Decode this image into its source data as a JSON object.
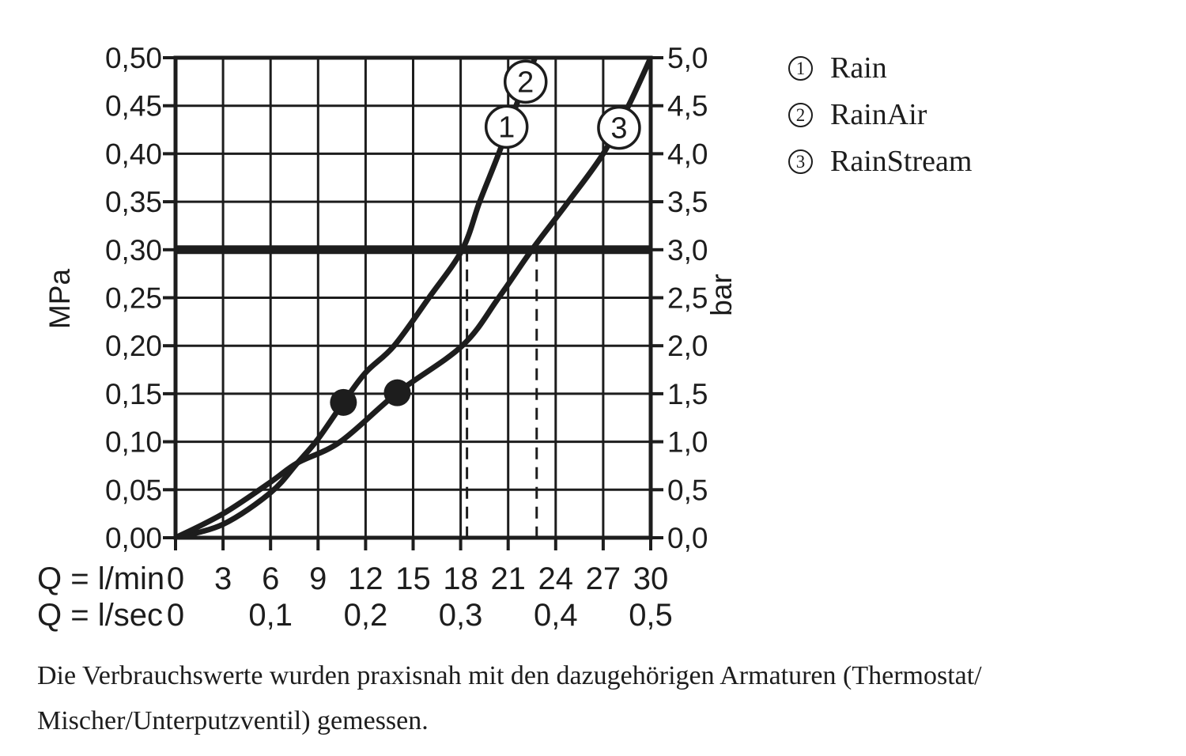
{
  "chart_data": {
    "type": "line",
    "title": "",
    "x_axis": {
      "range_lmin": [
        0,
        30
      ],
      "grid_step_lmin": 3,
      "row_lmin": {
        "label": "Q = l/min",
        "ticks": [
          {
            "q": 0,
            "t": "0"
          },
          {
            "q": 3,
            "t": "3"
          },
          {
            "q": 6,
            "t": "6"
          },
          {
            "q": 9,
            "t": "9"
          },
          {
            "q": 12,
            "t": "12"
          },
          {
            "q": 15,
            "t": "15"
          },
          {
            "q": 18,
            "t": "18"
          },
          {
            "q": 21,
            "t": "21"
          },
          {
            "q": 24,
            "t": "24"
          },
          {
            "q": 27,
            "t": "27"
          },
          {
            "q": 30,
            "t": "30"
          }
        ]
      },
      "row_lsec": {
        "label": "Q = l/sec",
        "ticks": [
          {
            "q": 0,
            "t": "0"
          },
          {
            "q": 6,
            "t": "0,1"
          },
          {
            "q": 12,
            "t": "0,2"
          },
          {
            "q": 18,
            "t": "0,3"
          },
          {
            "q": 24,
            "t": "0,4"
          },
          {
            "q": 30,
            "t": "0,5"
          }
        ]
      }
    },
    "y_axis_left": {
      "unit": "MPa",
      "range": [
        0,
        0.5
      ],
      "grid_step": 0.05,
      "ticks": [
        "0,50",
        "0,45",
        "0,40",
        "0,35",
        "0,30",
        "0,25",
        "0,20",
        "0,15",
        "0,10",
        "0,05",
        "0,00"
      ]
    },
    "y_axis_right": {
      "unit": "bar",
      "range": [
        0,
        5
      ],
      "ticks": [
        "5,0",
        "4,5",
        "4,0",
        "3,5",
        "3,0",
        "2,5",
        "2,0",
        "1,5",
        "1,0",
        "0,5",
        "0,0"
      ]
    },
    "reference_line": {
      "mpa": 0.3,
      "bar": 3.0
    },
    "dashed_guides_lmin": [
      18.4,
      22.8
    ],
    "series": [
      {
        "id": "rain-rainair",
        "name": "Rain / RainAir",
        "legend_refs": [
          "1",
          "2"
        ],
        "points_lmin_mpa": [
          [
            0,
            0
          ],
          [
            3,
            0.014
          ],
          [
            6,
            0.047
          ],
          [
            7.7,
            0.078
          ],
          [
            9,
            0.103
          ],
          [
            10.6,
            0.141
          ],
          [
            12,
            0.172
          ],
          [
            13.8,
            0.2
          ],
          [
            16,
            0.25
          ],
          [
            18.1,
            0.3
          ],
          [
            19.2,
            0.35
          ],
          [
            20.4,
            0.4
          ],
          [
            21.5,
            0.45
          ],
          [
            22.7,
            0.5
          ]
        ],
        "dot_lmin_mpa": [
          10.6,
          0.141
        ]
      },
      {
        "id": "rainstream",
        "name": "RainStream",
        "legend_refs": [
          "3"
        ],
        "points_lmin_mpa": [
          [
            0,
            0
          ],
          [
            3,
            0.025
          ],
          [
            6,
            0.058
          ],
          [
            7.7,
            0.078
          ],
          [
            10.4,
            0.1
          ],
          [
            14,
            0.151
          ],
          [
            18.1,
            0.2
          ],
          [
            20.4,
            0.25
          ],
          [
            22.5,
            0.3
          ],
          [
            24.8,
            0.35
          ],
          [
            27,
            0.4
          ],
          [
            28.6,
            0.45
          ],
          [
            30,
            0.5
          ]
        ],
        "dot_lmin_mpa": [
          14,
          0.151
        ]
      }
    ],
    "curve_badges": [
      {
        "text": "1",
        "lmin": 20.9,
        "mpa": 0.428
      },
      {
        "text": "2",
        "lmin": 22.1,
        "mpa": 0.475
      },
      {
        "text": "3",
        "lmin": 28.0,
        "mpa": 0.427
      }
    ]
  },
  "legend": {
    "items": [
      {
        "num": "1",
        "label": "Rain"
      },
      {
        "num": "2",
        "label": "RainAir"
      },
      {
        "num": "3",
        "label": "RainStream"
      }
    ]
  },
  "note": {
    "line1": "Die Verbrauchswerte wurden praxisnah mit den dazugehörigen Armaturen (Thermostat/",
    "line2": "Mischer/Unterputzventil) gemessen."
  }
}
